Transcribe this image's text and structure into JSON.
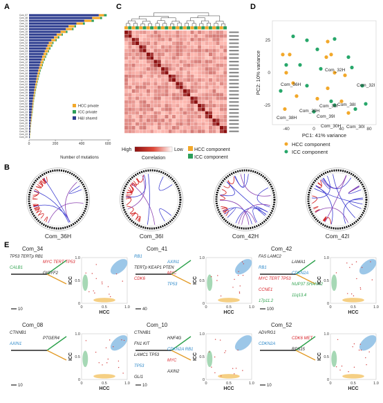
{
  "panel_labels": {
    "a": "A",
    "b": "B",
    "c": "C",
    "d": "D",
    "e": "E"
  },
  "colors": {
    "hcc": "#f2a82a",
    "icc": "#2c9f5a",
    "shared": "#2d3d8f",
    "heat_high": "#8c1010",
    "heat_low": "#ffffff",
    "pca_hcc": "#f2a82a",
    "pca_icc": "#27a76a",
    "tree_blue": "#2a87c8",
    "tree_red": "#d8232a",
    "tree_green": "#2aa04a",
    "tree_orange": "#e39b28",
    "circos_red": "#d42a2a",
    "circos_blue": "#3a3ad0",
    "circos_purple": "#8a40b0",
    "scatter_blue": "#9cc7e8",
    "scatter_green": "#a6d8b5",
    "scatter_orange": "#f5cf83"
  },
  "panel_a": {
    "legend": [
      {
        "label": "HCC private",
        "color": "#f2a82a"
      },
      {
        "label": "ICC private",
        "color": "#2c9f5a"
      },
      {
        "label": "H&I shared",
        "color": "#2d3d8f"
      }
    ],
    "xlabel": "Number of mutations",
    "xticks": [
      "0",
      "200",
      "400",
      "600"
    ]
  },
  "chart_data": {
    "type": "bar",
    "title": "",
    "xlabel": "Number of mutations",
    "ylabel": "",
    "xlim": [
      0,
      620
    ],
    "categories": [
      "Com_57",
      "Com_48",
      "Com_06",
      "Com_11",
      "Com_58",
      "Com_42",
      "Com_15",
      "Com_09",
      "Com_24",
      "Com_11b",
      "Com_32",
      "Com_34",
      "Com_36",
      "Com_03",
      "Com_07",
      "Com_45",
      "Com_38",
      "Com_12",
      "Com_31",
      "Com_13",
      "Com_14",
      "Com_44",
      "Com_25",
      "Com_46",
      "Com_41",
      "Com_02",
      "Com_49",
      "Com_05",
      "Com_29",
      "Com_18",
      "Com_10",
      "Com_37",
      "Com_52",
      "Com_08",
      "Com_01",
      "Com_23",
      "Com_35",
      "Com_50",
      "Com_39",
      "Com_40",
      "Com_27",
      "Com_33",
      "Com_30",
      "Com_43",
      "Com_20"
    ],
    "tick_labels": [
      "Com_57",
      "Com_48",
      "Com_06",
      "Com_11",
      "Com_58",
      "Com_42",
      "Com_15",
      "Com_09",
      "Com_24",
      "Com_11",
      "Com_32",
      "Com_34",
      "Com_36",
      "Com_03",
      "Com_07",
      "Com_45",
      "Com_38",
      "Com_12",
      "Com_31",
      "Com_13",
      "Com_14",
      "Com_44",
      "Com_25",
      "Com_46",
      "Com_41",
      "Com_02",
      "Com_49",
      "Com_05",
      "Com_29",
      "Com_18",
      "Com_10",
      "Com_37",
      "Com_52",
      "Com_08",
      "Com_01",
      "Com_23",
      "Com_35",
      "Com_50",
      "Com_39",
      "Com_40",
      "Com_27",
      "Com_33",
      "Com_30",
      "Com_43",
      "Com_20"
    ],
    "series": [
      {
        "name": "H&I shared",
        "values": [
          530,
          480,
          420,
          360,
          300,
          280,
          240,
          210,
          190,
          170,
          150,
          140,
          130,
          120,
          110,
          100,
          95,
          88,
          82,
          76,
          70,
          65,
          60,
          56,
          52,
          48,
          44,
          40,
          37,
          34,
          31,
          28,
          26,
          24,
          22,
          20,
          18,
          16,
          14,
          12,
          10,
          9,
          8,
          6,
          5
        ]
      },
      {
        "name": "HCC private",
        "values": [
          40,
          60,
          55,
          50,
          45,
          48,
          40,
          38,
          30,
          32,
          28,
          30,
          25,
          26,
          22,
          24,
          20,
          18,
          18,
          16,
          15,
          14,
          13,
          12,
          12,
          11,
          10,
          10,
          9,
          9,
          8,
          8,
          7,
          7,
          6,
          6,
          5,
          5,
          5,
          4,
          4,
          3,
          3,
          3,
          2
        ]
      },
      {
        "name": "ICC private",
        "values": [
          20,
          15,
          18,
          14,
          12,
          10,
          12,
          9,
          10,
          8,
          8,
          7,
          8,
          6,
          7,
          6,
          6,
          5,
          5,
          5,
          4,
          4,
          4,
          4,
          3,
          3,
          3,
          3,
          3,
          3,
          2,
          2,
          2,
          2,
          2,
          2,
          2,
          1,
          1,
          1,
          1,
          1,
          1,
          1,
          1
        ]
      }
    ]
  },
  "panel_c": {
    "legend_high": "High",
    "legend_low": "Low",
    "legend_title": "Correlation",
    "hcc_component": "HCC component",
    "icc_component": "ICC component"
  },
  "panel_d": {
    "xlabel": "PC1: 41% variance",
    "ylabel": "PC2: 10% variance",
    "xticks": [
      "-40",
      "0",
      "40",
      "80"
    ],
    "yticks": [
      "25",
      "0",
      "-25"
    ],
    "legend": [
      {
        "label": "HCC component",
        "color": "#f2a82a"
      },
      {
        "label": "ICC component",
        "color": "#27a76a"
      }
    ],
    "labels": [
      "Com_32H",
      "Com_36H",
      "Com_32I",
      "Com_39H",
      "Com_38I",
      "Com_38I",
      "Com_39I",
      "Com_30H",
      "Com_30I",
      "Com_38H"
    ],
    "points": [
      {
        "x": -30,
        "y": 28,
        "g": "icc"
      },
      {
        "x": -10,
        "y": 25,
        "g": "icc"
      },
      {
        "x": 20,
        "y": 24,
        "g": "hcc"
      },
      {
        "x": 30,
        "y": 26,
        "g": "icc"
      },
      {
        "x": 5,
        "y": 18,
        "g": "icc"
      },
      {
        "x": -45,
        "y": 14,
        "g": "hcc"
      },
      {
        "x": -35,
        "y": 14,
        "g": "hcc"
      },
      {
        "x": -40,
        "y": 6,
        "g": "icc"
      },
      {
        "x": 18,
        "y": 12,
        "g": "hcc"
      },
      {
        "x": 25,
        "y": 14,
        "g": "hcc"
      },
      {
        "x": 50,
        "y": 12,
        "g": "icc"
      },
      {
        "x": 55,
        "y": 4,
        "g": "icc"
      },
      {
        "x": -40,
        "y": 0,
        "g": "hcc"
      },
      {
        "x": -20,
        "y": 6,
        "g": "icc"
      },
      {
        "x": 10,
        "y": 3,
        "g": "icc"
      },
      {
        "x": 30,
        "y": 0,
        "g": "hcc"
      },
      {
        "x": 45,
        "y": -2,
        "g": "hcc"
      },
      {
        "x": -30,
        "y": -8,
        "g": "hcc"
      },
      {
        "x": -10,
        "y": -10,
        "g": "icc"
      },
      {
        "x": 20,
        "y": -12,
        "g": "hcc"
      },
      {
        "x": -48,
        "y": -14,
        "g": "icc"
      },
      {
        "x": -25,
        "y": -18,
        "g": "hcc"
      },
      {
        "x": 5,
        "y": -20,
        "g": "hcc"
      },
      {
        "x": 25,
        "y": -22,
        "g": "icc"
      },
      {
        "x": 30,
        "y": -25,
        "g": "icc"
      },
      {
        "x": 40,
        "y": -22,
        "g": "hcc"
      },
      {
        "x": 60,
        "y": -28,
        "g": "icc"
      },
      {
        "x": 75,
        "y": -24,
        "g": "icc"
      },
      {
        "x": 0,
        "y": -30,
        "g": "icc"
      },
      {
        "x": -42,
        "y": -28,
        "g": "hcc"
      },
      {
        "x": 50,
        "y": -31,
        "g": "hcc"
      },
      {
        "x": 70,
        "y": -10,
        "g": "icc"
      }
    ]
  },
  "panel_b": {
    "labels": [
      "Com_36H",
      "Com_36I",
      "Com_42H",
      "Com_42I"
    ]
  },
  "panel_e": {
    "axis_x": "HCC",
    "axis_y": "ICC",
    "ticks": [
      "0",
      "0.5",
      "1.0"
    ],
    "blocks": [
      {
        "title": "Com_34",
        "scale": "10",
        "genes": [
          {
            "t": "TP53 TERTp RB1",
            "c": "#222"
          },
          {
            "t": "MYC TERT TP53",
            "c": "mixed34"
          },
          {
            "t": "CALB1",
            "c": "#2aa04a"
          },
          {
            "t": "GIGYF2",
            "c": "#222"
          }
        ]
      },
      {
        "title": "Com_41",
        "scale": "40",
        "genes": [
          {
            "t": "RB1",
            "c": "#2a87c8"
          },
          {
            "t": "AXIN1",
            "c": "#2a87c8"
          },
          {
            "t": "TERTp KEAP1 PTEN",
            "c": "#222"
          },
          {
            "t": "MYC",
            "c": "#d8232a"
          },
          {
            "t": "CDK6",
            "c": "#d8232a"
          },
          {
            "t": "TP53",
            "c": "#2a87c8"
          }
        ]
      },
      {
        "title": "Com_42",
        "scale": "100",
        "genes": [
          {
            "t": "FAS LAMC2",
            "c": "#222"
          },
          {
            "t": "LAMA1",
            "c": "#222"
          },
          {
            "t": "RB1",
            "c": "#2a87c8"
          },
          {
            "t": "CDKN2A",
            "c": "#2a87c8"
          },
          {
            "t": "MYC TERT TP53",
            "c": "mixed42"
          },
          {
            "t": "NUP37 SHANK2",
            "c": "#2aa04a"
          },
          {
            "t": "CCNE1",
            "c": "#d8232a"
          },
          {
            "t": "11q13.4",
            "c": "#2aa04a"
          },
          {
            "t": "17p11.2",
            "c": "#2aa04a"
          }
        ]
      },
      {
        "title": "Com_08",
        "scale": "10",
        "genes": [
          {
            "t": "CTNNB1",
            "c": "#222"
          },
          {
            "t": "PTGER4",
            "c": "#222"
          },
          {
            "t": "AXIN1",
            "c": "#2a87c8"
          }
        ]
      },
      {
        "title": "Com_10",
        "scale": "10",
        "genes": [
          {
            "t": "CTNNB1",
            "c": "#222"
          },
          {
            "t": "HNF4G",
            "c": "#222"
          },
          {
            "t": "FN1 KIT",
            "c": "#222"
          },
          {
            "t": "CDKN2A RB1",
            "c": "#2a87c8"
          },
          {
            "t": "LAMC1 TP53",
            "c": "#222"
          },
          {
            "t": "MYC",
            "c": "#d8232a"
          },
          {
            "t": "TP53",
            "c": "#2a87c8"
          },
          {
            "t": "AXIN2",
            "c": "#222"
          },
          {
            "t": "GLI1",
            "c": "#222"
          }
        ]
      },
      {
        "title": "Com_52",
        "scale": "10",
        "genes": [
          {
            "t": "ADVRG1",
            "c": "#222"
          },
          {
            "t": "CDK6 MET",
            "c": "#d8232a"
          },
          {
            "t": "CDKN2A",
            "c": "#2a87c8"
          },
          {
            "t": "RPS15",
            "c": "#222"
          }
        ]
      }
    ]
  }
}
